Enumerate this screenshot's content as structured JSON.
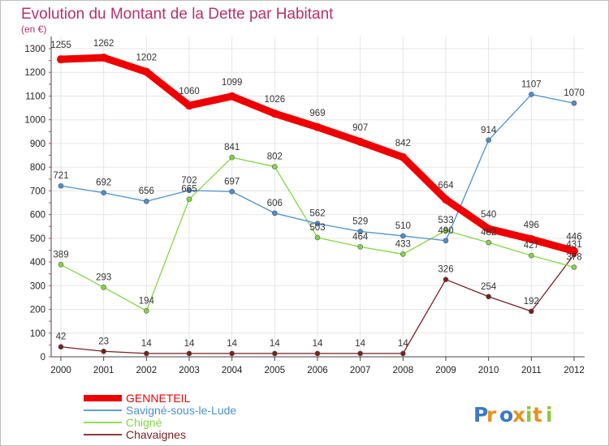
{
  "chart_data": {
    "type": "line",
    "title": "Evolution du Montant de la Dette par Habitant",
    "subtitle": "(en €)",
    "x": [
      "2000",
      "2001",
      "2002",
      "2003",
      "2004",
      "2005",
      "2006",
      "2007",
      "2008",
      "2009",
      "2010",
      "2011",
      "2012"
    ],
    "yticks": [
      0,
      100,
      200,
      300,
      400,
      500,
      600,
      700,
      800,
      900,
      1000,
      1100,
      1200,
      1300
    ],
    "ylim": [
      0,
      1300
    ],
    "grid": true,
    "legend_position": "bottom-left",
    "series": [
      {
        "name": "GENNETEIL",
        "color": "#ee0000",
        "values": [
          1255,
          1262,
          1202,
          1060,
          1099,
          1026,
          969,
          907,
          842,
          664,
          540,
          496,
          446
        ]
      },
      {
        "name": "Savigné-sous-le-Lude",
        "color": "#4a90d0",
        "values": [
          721,
          692,
          656,
          702,
          697,
          606,
          562,
          529,
          510,
          490,
          914,
          1107,
          1070
        ]
      },
      {
        "name": "Chigné",
        "color": "#80d840",
        "values": [
          389,
          293,
          194,
          665,
          841,
          802,
          503,
          464,
          433,
          533,
          482,
          427,
          378
        ]
      },
      {
        "name": "Chavaignes",
        "color": "#7a1f1f",
        "values": [
          42,
          23,
          14,
          14,
          14,
          14,
          14,
          14,
          14,
          326,
          254,
          192,
          431
        ]
      }
    ]
  },
  "logo": {
    "text": "Proxiti"
  }
}
